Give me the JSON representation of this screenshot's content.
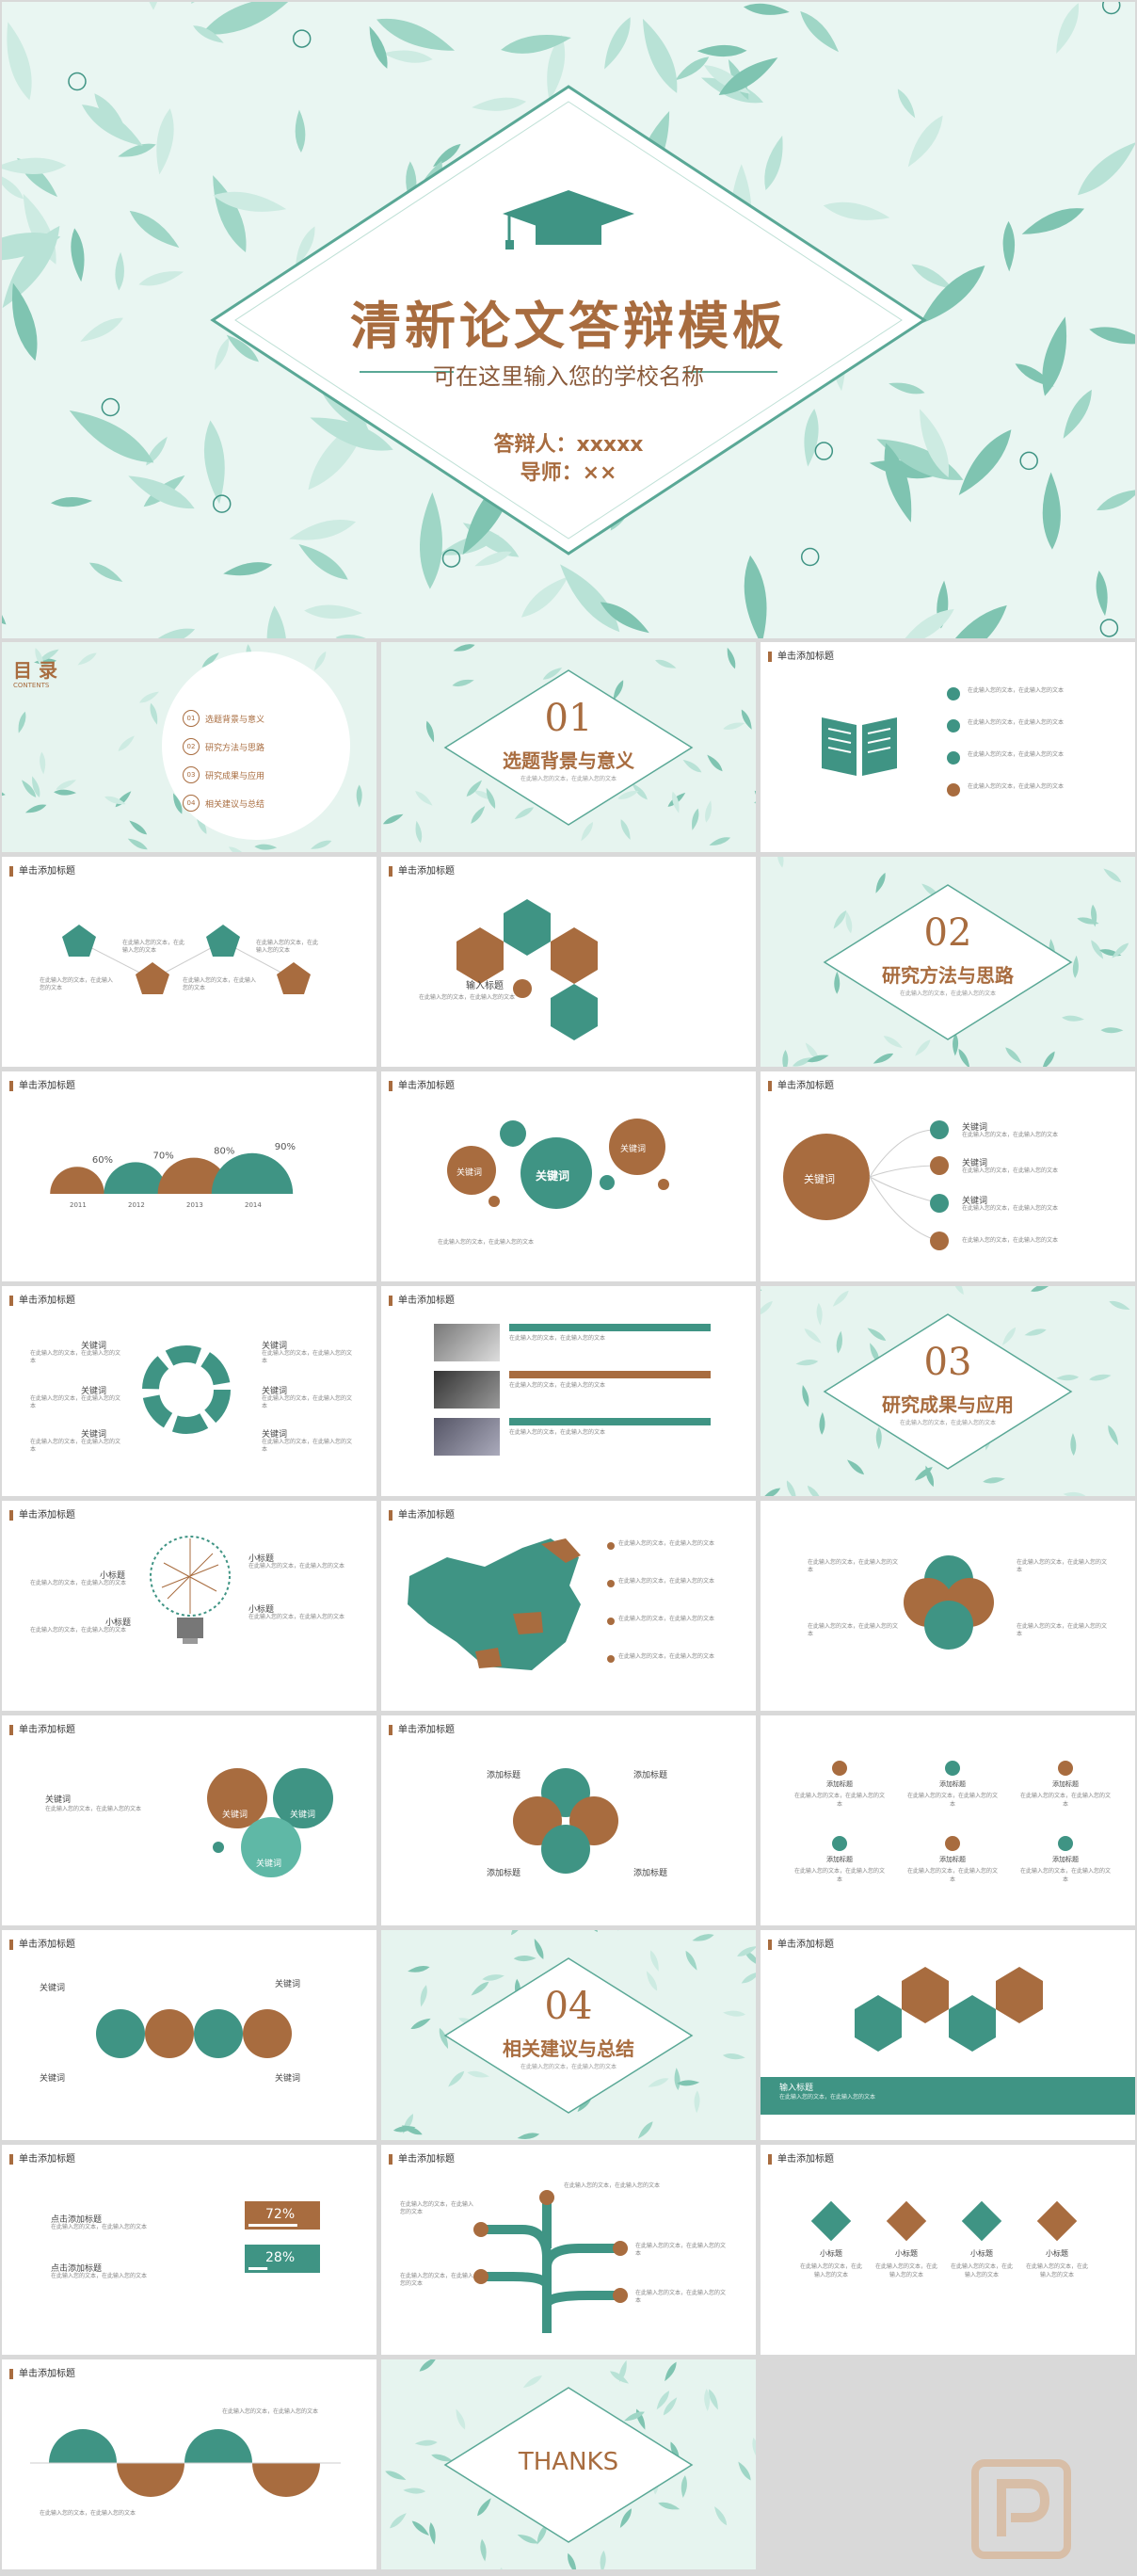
{
  "cover": {
    "title": "清新论文答辩模板",
    "subtitle": "可在这里输入您的学校名称",
    "defender": "答辩人：xxxxx",
    "advisor": "导师：××"
  },
  "common": {
    "header": "单击添加标题",
    "body_text": "在此输入您的文本，在此输入您的文本"
  },
  "toc": {
    "title": "目 录",
    "subtitle": "CONTENTS",
    "items": [
      {
        "num": "01",
        "label": "选题背景与意义"
      },
      {
        "num": "02",
        "label": "研究方法与思路"
      },
      {
        "num": "03",
        "label": "研究成果与应用"
      },
      {
        "num": "04",
        "label": "相关建议与总结"
      }
    ]
  },
  "sections": [
    {
      "num": "01",
      "title": "选题背景与意义"
    },
    {
      "num": "02",
      "title": "研究方法与思路"
    },
    {
      "num": "03",
      "title": "研究成果与应用"
    },
    {
      "num": "04",
      "title": "相关建议与总结"
    }
  ],
  "hex_slide": {
    "input_title": "输入标题",
    "hex_label": "在此输入您的文本"
  },
  "semicircle_chart": {
    "chart_data": {
      "type": "area",
      "categories": [
        "2011",
        "2012",
        "2013",
        "2014"
      ],
      "values": [
        60,
        70,
        80,
        90
      ],
      "value_labels": [
        "60%",
        "70%",
        "80%",
        "90%"
      ]
    }
  },
  "keywords": {
    "word": "关键词",
    "small": "关键词"
  },
  "progress": {
    "label": "点击添加标题",
    "chart_data": {
      "type": "bar",
      "values": [
        72,
        28
      ],
      "value_labels": [
        "72%",
        "28%"
      ]
    }
  },
  "small_title": "小标题",
  "text_title": "添加标题",
  "input_title": "输入标题",
  "thanks": "THANKS"
}
